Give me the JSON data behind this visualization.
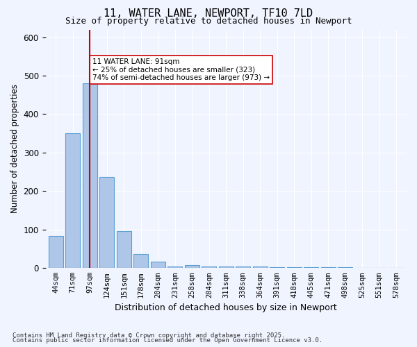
{
  "title1": "11, WATER LANE, NEWPORT, TF10 7LD",
  "title2": "Size of property relative to detached houses in Newport",
  "xlabel": "Distribution of detached houses by size in Newport",
  "ylabel": "Number of detached properties",
  "categories": [
    "44sqm",
    "71sqm",
    "97sqm",
    "124sqm",
    "151sqm",
    "178sqm",
    "204sqm",
    "231sqm",
    "258sqm",
    "284sqm",
    "311sqm",
    "338sqm",
    "364sqm",
    "391sqm",
    "418sqm",
    "445sqm",
    "471sqm",
    "498sqm",
    "525sqm",
    "551sqm",
    "578sqm"
  ],
  "values": [
    84,
    350,
    480,
    236,
    96,
    37,
    16,
    5,
    7,
    5,
    4,
    4,
    4,
    3,
    3,
    2,
    2,
    2,
    1,
    1,
    1
  ],
  "bar_color": "#aec6e8",
  "bar_edge_color": "#5a9fd4",
  "red_line_index": 2,
  "red_line_color": "#cc0000",
  "annotation_text": "11 WATER LANE: 91sqm\n← 25% of detached houses are smaller (323)\n74% of semi-detached houses are larger (973) →",
  "annotation_box_color": "#ffffff",
  "annotation_box_edge": "#cc0000",
  "background_color": "#f0f4ff",
  "grid_color": "#ffffff",
  "ylim": [
    0,
    620
  ],
  "footer1": "Contains HM Land Registry data © Crown copyright and database right 2025.",
  "footer2": "Contains public sector information licensed under the Open Government Licence v3.0."
}
